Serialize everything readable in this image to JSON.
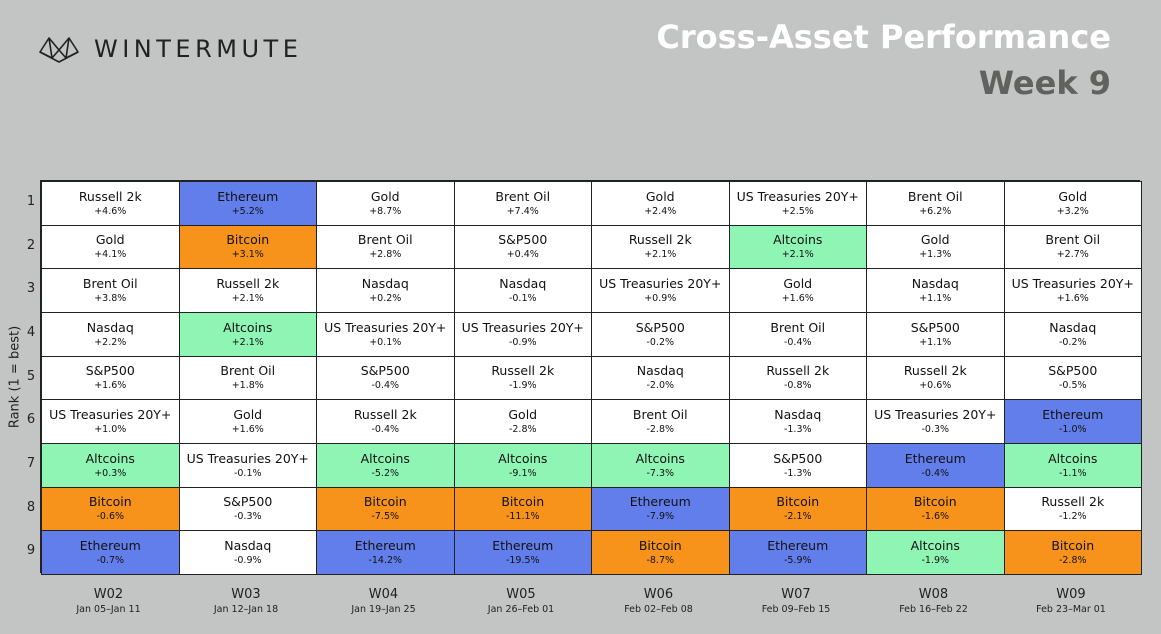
{
  "brand": {
    "name": "WINTERMUTE",
    "logo_icon": "wintermute-logo-icon"
  },
  "header": {
    "title": "Cross-Asset Performance",
    "subtitle": "Week 9"
  },
  "colors": {
    "Bitcoin": "#f7931a",
    "Ethereum": "#627eea",
    "Altcoins": "#8ff5b5",
    "other": "#ffffff"
  },
  "chart_data": {
    "type": "table",
    "title": "Cross-Asset Performance",
    "subtitle": "Week 9",
    "ylabel": "Rank (1 = best)",
    "ranks": [
      1,
      2,
      3,
      4,
      5,
      6,
      7,
      8,
      9
    ],
    "weeks": [
      {
        "label": "W02",
        "dates": "Jan 05–Jan 11",
        "entries": [
          {
            "asset": "Russell 2k",
            "change": "+4.6%"
          },
          {
            "asset": "Gold",
            "change": "+4.1%"
          },
          {
            "asset": "Brent Oil",
            "change": "+3.8%"
          },
          {
            "asset": "Nasdaq",
            "change": "+2.2%"
          },
          {
            "asset": "S&P500",
            "change": "+1.6%"
          },
          {
            "asset": "US Treasuries 20Y+",
            "change": "+1.0%"
          },
          {
            "asset": "Altcoins",
            "change": "+0.3%"
          },
          {
            "asset": "Bitcoin",
            "change": "-0.6%"
          },
          {
            "asset": "Ethereum",
            "change": "-0.7%"
          }
        ]
      },
      {
        "label": "W03",
        "dates": "Jan 12–Jan 18",
        "entries": [
          {
            "asset": "Ethereum",
            "change": "+5.2%"
          },
          {
            "asset": "Bitcoin",
            "change": "+3.1%"
          },
          {
            "asset": "Russell 2k",
            "change": "+2.1%"
          },
          {
            "asset": "Altcoins",
            "change": "+2.1%"
          },
          {
            "asset": "Brent Oil",
            "change": "+1.8%"
          },
          {
            "asset": "Gold",
            "change": "+1.6%"
          },
          {
            "asset": "US Treasuries 20Y+",
            "change": "-0.1%"
          },
          {
            "asset": "S&P500",
            "change": "-0.3%"
          },
          {
            "asset": "Nasdaq",
            "change": "-0.9%"
          }
        ]
      },
      {
        "label": "W04",
        "dates": "Jan 19–Jan 25",
        "entries": [
          {
            "asset": "Gold",
            "change": "+8.7%"
          },
          {
            "asset": "Brent Oil",
            "change": "+2.8%"
          },
          {
            "asset": "Nasdaq",
            "change": "+0.2%"
          },
          {
            "asset": "US Treasuries 20Y+",
            "change": "+0.1%"
          },
          {
            "asset": "S&P500",
            "change": "-0.4%"
          },
          {
            "asset": "Russell 2k",
            "change": "-0.4%"
          },
          {
            "asset": "Altcoins",
            "change": "-5.2%"
          },
          {
            "asset": "Bitcoin",
            "change": "-7.5%"
          },
          {
            "asset": "Ethereum",
            "change": "-14.2%"
          }
        ]
      },
      {
        "label": "W05",
        "dates": "Jan 26–Feb 01",
        "entries": [
          {
            "asset": "Brent Oil",
            "change": "+7.4%"
          },
          {
            "asset": "S&P500",
            "change": "+0.4%"
          },
          {
            "asset": "Nasdaq",
            "change": "-0.1%"
          },
          {
            "asset": "US Treasuries 20Y+",
            "change": "-0.9%"
          },
          {
            "asset": "Russell 2k",
            "change": "-1.9%"
          },
          {
            "asset": "Gold",
            "change": "-2.8%"
          },
          {
            "asset": "Altcoins",
            "change": "-9.1%"
          },
          {
            "asset": "Bitcoin",
            "change": "-11.1%"
          },
          {
            "asset": "Ethereum",
            "change": "-19.5%"
          }
        ]
      },
      {
        "label": "W06",
        "dates": "Feb 02–Feb 08",
        "entries": [
          {
            "asset": "Gold",
            "change": "+2.4%"
          },
          {
            "asset": "Russell 2k",
            "change": "+2.1%"
          },
          {
            "asset": "US Treasuries 20Y+",
            "change": "+0.9%"
          },
          {
            "asset": "S&P500",
            "change": "-0.2%"
          },
          {
            "asset": "Nasdaq",
            "change": "-2.0%"
          },
          {
            "asset": "Brent Oil",
            "change": "-2.8%"
          },
          {
            "asset": "Altcoins",
            "change": "-7.3%"
          },
          {
            "asset": "Ethereum",
            "change": "-7.9%"
          },
          {
            "asset": "Bitcoin",
            "change": "-8.7%"
          }
        ]
      },
      {
        "label": "W07",
        "dates": "Feb 09–Feb 15",
        "entries": [
          {
            "asset": "US Treasuries 20Y+",
            "change": "+2.5%"
          },
          {
            "asset": "Altcoins",
            "change": "+2.1%"
          },
          {
            "asset": "Gold",
            "change": "+1.6%"
          },
          {
            "asset": "Brent Oil",
            "change": "-0.4%"
          },
          {
            "asset": "Russell 2k",
            "change": "-0.8%"
          },
          {
            "asset": "Nasdaq",
            "change": "-1.3%"
          },
          {
            "asset": "S&P500",
            "change": "-1.3%"
          },
          {
            "asset": "Bitcoin",
            "change": "-2.1%"
          },
          {
            "asset": "Ethereum",
            "change": "-5.9%"
          }
        ]
      },
      {
        "label": "W08",
        "dates": "Feb 16–Feb 22",
        "entries": [
          {
            "asset": "Brent Oil",
            "change": "+6.2%"
          },
          {
            "asset": "Gold",
            "change": "+1.3%"
          },
          {
            "asset": "Nasdaq",
            "change": "+1.1%"
          },
          {
            "asset": "S&P500",
            "change": "+1.1%"
          },
          {
            "asset": "Russell 2k",
            "change": "+0.6%"
          },
          {
            "asset": "US Treasuries 20Y+",
            "change": "-0.3%"
          },
          {
            "asset": "Ethereum",
            "change": "-0.4%"
          },
          {
            "asset": "Bitcoin",
            "change": "-1.6%"
          },
          {
            "asset": "Altcoins",
            "change": "-1.9%"
          }
        ]
      },
      {
        "label": "W09",
        "dates": "Feb 23–Mar 01",
        "entries": [
          {
            "asset": "Gold",
            "change": "+3.2%"
          },
          {
            "asset": "Brent Oil",
            "change": "+2.7%"
          },
          {
            "asset": "US Treasuries 20Y+",
            "change": "+1.6%"
          },
          {
            "asset": "Nasdaq",
            "change": "-0.2%"
          },
          {
            "asset": "S&P500",
            "change": "-0.5%"
          },
          {
            "asset": "Ethereum",
            "change": "-1.0%"
          },
          {
            "asset": "Altcoins",
            "change": "-1.1%"
          },
          {
            "asset": "Russell 2k",
            "change": "-1.2%"
          },
          {
            "asset": "Bitcoin",
            "change": "-2.8%"
          }
        ]
      }
    ]
  }
}
